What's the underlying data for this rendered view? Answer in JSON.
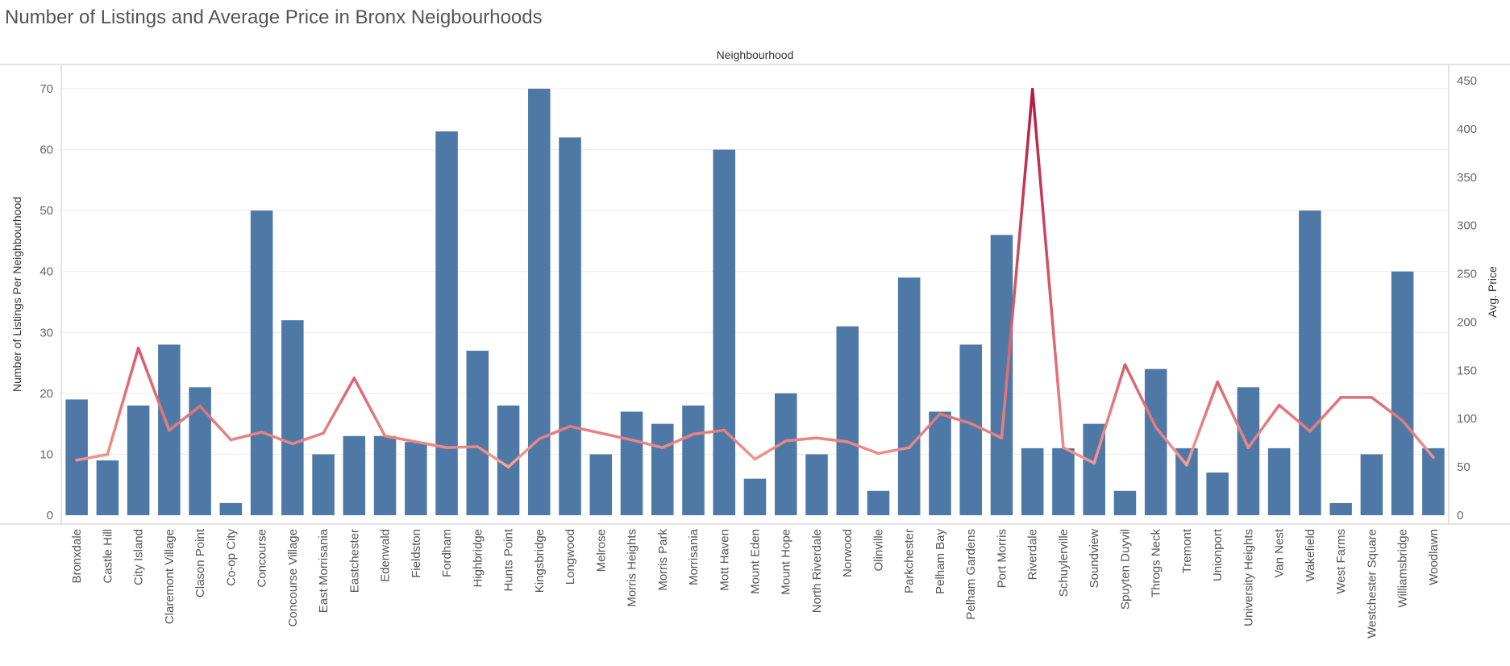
{
  "chart_data": {
    "type": "bar",
    "title": "Number of Listings and Average Price in Bronx Neigbourhoods",
    "header": "Neighbourhood",
    "ylabel": "Number of Listings Per Neighbourhood",
    "y2label": "Avg. Price",
    "ylim": [
      0,
      70
    ],
    "y2lim": [
      0,
      450
    ],
    "yticks": [
      0,
      10,
      20,
      30,
      40,
      50,
      60,
      70
    ],
    "y2ticks": [
      0,
      50,
      100,
      150,
      200,
      250,
      300,
      350,
      400,
      450
    ],
    "categories": [
      "Bronxdale",
      "Castle Hill",
      "City Island",
      "Claremont Village",
      "Clason Point",
      "Co-op City",
      "Concourse",
      "Concourse Village",
      "East Morrisania",
      "Eastchester",
      "Edenwald",
      "Fieldston",
      "Fordham",
      "Highbridge",
      "Hunts Point",
      "Kingsbridge",
      "Longwood",
      "Melrose",
      "Morris Heights",
      "Morris Park",
      "Morrisania",
      "Mott Haven",
      "Mount Eden",
      "Mount Hope",
      "North Riverdale",
      "Norwood",
      "Olinville",
      "Parkchester",
      "Pelham Bay",
      "Pelham Gardens",
      "Port Morris",
      "Riverdale",
      "Schuylerville",
      "Soundview",
      "Spuyten Duyvil",
      "Throgs Neck",
      "Tremont",
      "Unionport",
      "University Heights",
      "Van Nest",
      "Wakefield",
      "West Farms",
      "Westchester Square",
      "Williamsbridge",
      "Woodlawn"
    ],
    "series": [
      {
        "type": "bar",
        "axis": "left",
        "values": [
          19,
          9,
          18,
          28,
          21,
          2,
          50,
          32,
          10,
          13,
          13,
          12,
          63,
          27,
          18,
          70,
          62,
          10,
          17,
          15,
          18,
          60,
          6,
          20,
          10,
          31,
          4,
          39,
          17,
          28,
          46,
          11,
          11,
          15,
          4,
          24,
          11,
          7,
          21,
          11,
          50,
          2,
          10,
          40,
          11
        ]
      },
      {
        "type": "line",
        "axis": "right",
        "values": [
          57,
          63,
          173,
          88,
          113,
          78,
          86,
          74,
          85,
          142,
          82,
          76,
          70,
          71,
          50,
          79,
          92,
          85,
          78,
          70,
          84,
          88,
          58,
          77,
          80,
          76,
          64,
          70,
          105,
          95,
          80,
          441,
          70,
          54,
          156,
          91,
          52,
          138,
          70,
          114,
          87,
          122,
          122,
          98,
          60
        ]
      }
    ],
    "colors": {
      "bar": "#4e79a7",
      "line_low": "#f8a597",
      "line_high": "#b51a42",
      "grid": "#ebebeb",
      "axis": "#c8c8c8"
    },
    "grid": true,
    "legend": "none"
  }
}
